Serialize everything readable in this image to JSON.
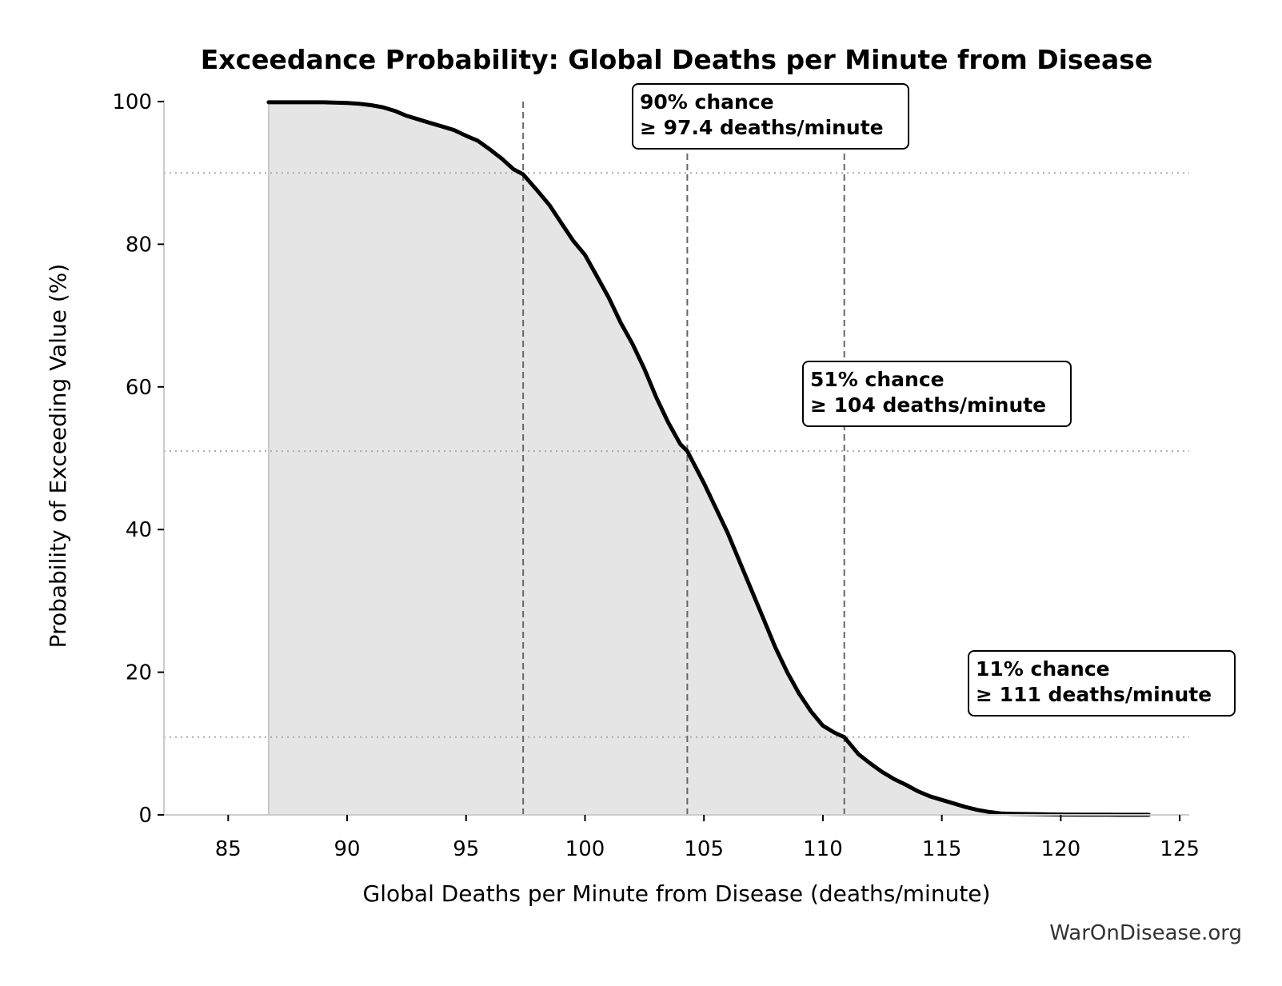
{
  "chart_data": {
    "type": "area",
    "title": "Exceedance Probability: Global Deaths per Minute from Disease",
    "xlabel": "Global Deaths per Minute from Disease (deaths/minute)",
    "ylabel": "Probability of Exceeding Value (%)",
    "xlim": [
      82.3,
      125.4
    ],
    "ylim": [
      0,
      100
    ],
    "xticks": [
      85,
      90,
      95,
      100,
      105,
      110,
      115,
      120,
      125
    ],
    "yticks": [
      0,
      20,
      40,
      60,
      80,
      100
    ],
    "grid": false,
    "series": [
      {
        "x": [
          86.7,
          88,
          89,
          90,
          90.5,
          91,
          91.5,
          92,
          92.5,
          93,
          93.5,
          94,
          94.5,
          95,
          95.5,
          96,
          96.5,
          97,
          97.4,
          98,
          98.5,
          99,
          99.5,
          100,
          100.5,
          101,
          101.5,
          102,
          102.5,
          103,
          103.5,
          104,
          104.3,
          105,
          105.5,
          106,
          106.5,
          107,
          107.5,
          108,
          108.5,
          109,
          109.5,
          110,
          110.5,
          110.9,
          111.5,
          112,
          112.5,
          113,
          113.5,
          114,
          114.5,
          115,
          115.5,
          116,
          116.5,
          117,
          117.5,
          118,
          119,
          120,
          121,
          122,
          123.7
        ],
        "y": [
          99.9,
          99.9,
          99.9,
          99.8,
          99.7,
          99.5,
          99.2,
          98.7,
          98.0,
          97.5,
          97.0,
          96.5,
          96.0,
          95.2,
          94.5,
          93.3,
          92.0,
          90.5,
          89.8,
          87.5,
          85.5,
          83.0,
          80.5,
          78.5,
          75.5,
          72.5,
          69.0,
          66.0,
          62.5,
          58.5,
          55.0,
          52.0,
          51.0,
          46.5,
          43.0,
          39.5,
          35.5,
          31.5,
          27.5,
          23.5,
          20.0,
          17.0,
          14.5,
          12.5,
          11.5,
          10.9,
          8.5,
          7.2,
          6.0,
          5.0,
          4.2,
          3.3,
          2.6,
          2.1,
          1.6,
          1.1,
          0.7,
          0.4,
          0.2,
          0.15,
          0.1,
          0.05,
          0.03,
          0.02,
          0.01
        ]
      }
    ],
    "reference_lines": [
      {
        "x": 97.4,
        "y": 90
      },
      {
        "x": 104.3,
        "y": 51
      },
      {
        "x": 110.9,
        "y": 10.9
      }
    ],
    "annotations": [
      {
        "line1": "90% chance",
        "line2": "≥ 97.4 deaths/minute"
      },
      {
        "line1": "51% chance",
        "line2": "≥ 104 deaths/minute"
      },
      {
        "line1": "11% chance",
        "line2": "≥ 111 deaths/minute"
      }
    ],
    "colors": {
      "line": "#000000",
      "fill": "#e5e5e5",
      "reference": "#666666",
      "axis": "#cccccc"
    }
  },
  "watermark": "WarOnDisease.org"
}
